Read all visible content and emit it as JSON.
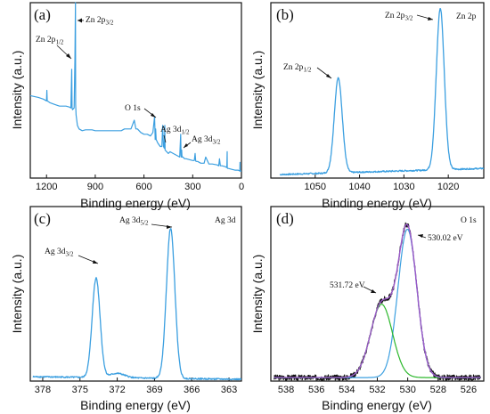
{
  "chart_data": [
    {
      "id": "a",
      "type": "line",
      "panel_label": "(a)",
      "xlabel": "Binding energy (eV)",
      "ylabel": "Intensity (a.u.)",
      "xlim": [
        1300,
        0
      ],
      "ylim": [
        0,
        100
      ],
      "xticks": [
        1200,
        900,
        600,
        300,
        0
      ],
      "color": "#3b9fe0",
      "series": [
        {
          "x": [
            1300,
            1250,
            1220,
            1200,
            1198,
            1196,
            1180,
            1150,
            1120,
            1100,
            1080,
            1060,
            1050,
            1045,
            1043,
            1040,
            1030,
            1025,
            1022,
            1021.5,
            1021,
            1018,
            1010,
            1000,
            980,
            960,
            940,
            920,
            900,
            880,
            860,
            840,
            820,
            800,
            780,
            760,
            740,
            720,
            700,
            680,
            660,
            650,
            640,
            620,
            600,
            580,
            560,
            545,
            535,
            531,
            528,
            525,
            515,
            500,
            490,
            485,
            480,
            475,
            472,
            470,
            460,
            450,
            440,
            420,
            400,
            380,
            374,
            372,
            370,
            368,
            366,
            360,
            350,
            340,
            320,
            300,
            290,
            285,
            282,
            280,
            270,
            260,
            250,
            230,
            220,
            200,
            180,
            150,
            140,
            135,
            130,
            120,
            100,
            90,
            88,
            87,
            85,
            80,
            60,
            40,
            20,
            10,
            9,
            8,
            5,
            0
          ],
          "y": [
            47,
            46,
            45,
            44,
            50,
            44,
            43,
            42,
            41,
            41,
            41,
            40.5,
            40,
            62,
            40,
            39,
            40,
            68,
            100,
            70,
            42,
            36,
            30,
            28,
            27,
            27.5,
            27.5,
            27.5,
            27,
            27,
            27,
            27,
            27,
            27,
            27,
            27,
            27,
            28,
            28,
            28,
            33,
            28,
            28,
            26,
            25,
            25,
            24,
            26,
            35,
            22,
            28,
            22,
            20,
            18,
            18,
            30,
            18,
            17,
            30,
            16,
            15,
            14,
            15,
            14,
            13,
            12,
            25,
            13,
            12,
            16,
            12,
            12,
            11,
            11,
            10.5,
            10,
            10,
            14,
            10,
            9.5,
            9.5,
            9,
            8.5,
            8.5,
            12,
            8,
            8,
            7.5,
            7,
            11,
            7,
            7,
            6.5,
            6,
            15,
            6,
            5.5,
            5.5,
            5,
            4.5,
            4.5,
            4,
            9,
            4,
            4,
            4
          ]
        }
      ],
      "annotations": [
        "Zn 2p1/2",
        "Zn 2p3/2",
        "O 1s",
        "Ag 3d1/2",
        "Ag 3d3/2"
      ]
    },
    {
      "id": "b",
      "type": "line",
      "panel_label": "(b)",
      "corner_label": "Zn 2p",
      "xlabel": "Binding energy (eV)",
      "ylabel": "Intensity (a.u.)",
      "xlim": [
        1060,
        1012
      ],
      "ylim": [
        0,
        100
      ],
      "xticks": [
        1050,
        1040,
        1030,
        1020
      ],
      "color": "#3b9fe0",
      "series": [
        {
          "peaks": [
            {
              "center": 1044.8,
              "height": 54,
              "width": 0.9
            },
            {
              "center": 1021.8,
              "height": 92,
              "width": 0.9
            }
          ],
          "baseline_start": 2,
          "baseline_end": 5.5,
          "x_start": 1058,
          "x_end": 1012
        }
      ],
      "annotations": [
        "Zn 2p1/2",
        "Zn 2p3/2"
      ]
    },
    {
      "id": "c",
      "type": "line",
      "panel_label": "(c)",
      "corner_label": "Ag 3d",
      "xlabel": "Binding energy (eV)",
      "ylabel": "Intensity (a.u.)",
      "xlim": [
        379,
        362
      ],
      "ylim": [
        0,
        100
      ],
      "xticks": [
        378,
        375,
        372,
        369,
        366,
        363
      ],
      "color": "#3b9fe0",
      "series": [
        {
          "peaks": [
            {
              "center": 373.7,
              "height": 57,
              "width": 0.32
            },
            {
              "center": 367.7,
              "height": 86,
              "width": 0.34
            },
            {
              "center": 372.0,
              "height": 2.5,
              "width": 0.6
            }
          ],
          "baseline_start": 2.5,
          "baseline_end": 1.0,
          "x_start": 378.8,
          "x_end": 362
        }
      ],
      "annotations": [
        "Ag 3d3/2",
        "Ag 3d5/2"
      ]
    },
    {
      "id": "d",
      "type": "line",
      "panel_label": "(d)",
      "corner_label": "O 1s",
      "xlabel": "Binding energy (eV)",
      "ylabel": "Intensity (a.u.)",
      "xlim": [
        539,
        525
      ],
      "ylim": [
        0,
        100
      ],
      "xticks": [
        538,
        536,
        534,
        532,
        530,
        528,
        526
      ],
      "series": [
        {
          "role": "raw",
          "color": "#111111",
          "components": [
            "531.72",
            "530.02"
          ]
        },
        {
          "role": "fit",
          "color": "#9b59c9",
          "components": [
            "531.72",
            "530.02"
          ]
        },
        {
          "role": "component",
          "color": "#3b9fe0",
          "center": 530.02,
          "height": 85,
          "width": 0.62
        },
        {
          "role": "component",
          "color": "#2cb82c",
          "center": 531.72,
          "height": 42,
          "width": 0.72
        }
      ],
      "baseline": 2,
      "annotations": [
        "530.02 eV",
        "531.72 eV"
      ]
    }
  ]
}
